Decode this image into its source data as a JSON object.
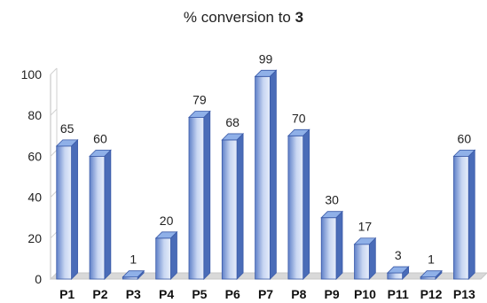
{
  "chart_data": {
    "type": "bar",
    "title_prefix": "% conversion to ",
    "title_bold": "3",
    "xlabel": "",
    "ylabel": "",
    "ylim": [
      0,
      100
    ],
    "yticks": [
      0,
      20,
      40,
      60,
      80,
      100
    ],
    "grid": false,
    "style": "3d-column",
    "colors": {
      "face": "#6f8fd0",
      "face_light": "#dce6f8",
      "side": "#4a6cb8",
      "top": "#8fb0e8",
      "edge": "#3a5aa8",
      "floor": "#d9d9d9"
    },
    "categories": [
      "P1",
      "P2",
      "P3",
      "P4",
      "P5",
      "P6",
      "P7",
      "P8",
      "P9",
      "P10",
      "P11",
      "P12",
      "P13"
    ],
    "values": [
      65,
      60,
      1,
      20,
      79,
      68,
      99,
      70,
      30,
      17,
      3,
      1,
      60
    ]
  }
}
